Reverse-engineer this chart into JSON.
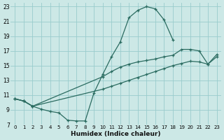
{
  "xlabel": "Humidex (Indice chaleur)",
  "bg_color": "#cce8e6",
  "grid_color": "#99cccc",
  "line_color": "#2a6b60",
  "xlim": [
    -0.5,
    23.5
  ],
  "ylim": [
    7,
    23.5
  ],
  "xticks": [
    0,
    1,
    2,
    3,
    4,
    5,
    6,
    7,
    8,
    9,
    10,
    11,
    12,
    13,
    14,
    15,
    16,
    17,
    18,
    19,
    20,
    21,
    22,
    23
  ],
  "yticks": [
    7,
    9,
    11,
    13,
    15,
    17,
    19,
    21,
    23
  ],
  "line1_x": [
    0,
    1,
    2,
    3,
    4,
    5,
    6,
    7,
    8,
    9,
    10,
    11,
    12,
    13,
    14,
    15,
    16,
    17,
    18
  ],
  "line1_y": [
    10.5,
    10.2,
    9.5,
    9.1,
    8.8,
    8.6,
    7.6,
    7.5,
    7.5,
    11.3,
    13.8,
    16.2,
    18.2,
    21.5,
    22.5,
    23.0,
    22.7,
    21.2,
    18.5
  ],
  "line2_x": [
    0,
    1,
    2,
    10,
    11,
    12,
    13,
    14,
    15,
    16,
    17,
    18,
    19,
    20,
    21,
    22,
    23
  ],
  "line2_y": [
    10.5,
    10.2,
    9.5,
    13.5,
    14.2,
    14.8,
    15.2,
    15.5,
    15.7,
    15.9,
    16.2,
    16.4,
    17.2,
    17.2,
    17.0,
    15.2,
    16.5
  ],
  "line3_x": [
    0,
    1,
    2,
    10,
    11,
    12,
    13,
    14,
    15,
    16,
    17,
    18,
    19,
    20,
    21,
    22,
    23
  ],
  "line3_y": [
    10.5,
    10.2,
    9.5,
    11.8,
    12.2,
    12.6,
    13.0,
    13.4,
    13.8,
    14.2,
    14.6,
    15.0,
    15.3,
    15.6,
    15.5,
    15.2,
    16.2
  ]
}
